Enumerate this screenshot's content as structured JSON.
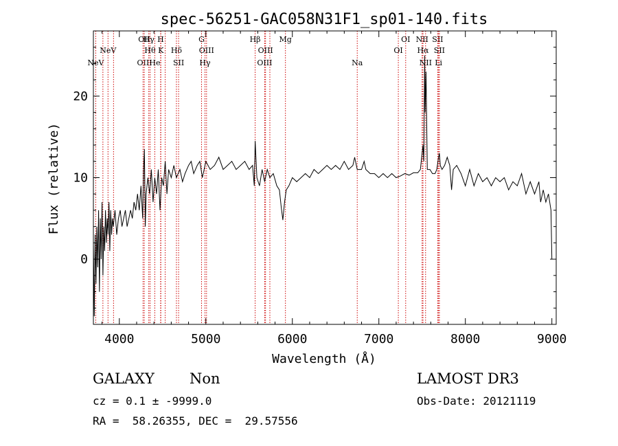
{
  "colors": {
    "axis": "#000000",
    "spectrum": "#000000",
    "line_marker": "#cc0000",
    "background": "#ffffff"
  },
  "chart_data": {
    "type": "line",
    "title": "spec-56251-GAC058N31F1_sp01-140.fits",
    "xlabel": "Wavelength (Å)",
    "ylabel": "Flux (relative)",
    "xlim": [
      3700,
      9050
    ],
    "ylim": [
      -8,
      28
    ],
    "x_ticks": [
      4000,
      5000,
      6000,
      7000,
      8000,
      9000
    ],
    "y_ticks": [
      0,
      10,
      20
    ],
    "x_minor_step": 200,
    "y_minor_step": 2,
    "series": [
      {
        "name": "flux",
        "points": [
          [
            3700,
            2
          ],
          [
            3710,
            -7
          ],
          [
            3720,
            3
          ],
          [
            3730,
            -3
          ],
          [
            3740,
            4
          ],
          [
            3750,
            -1
          ],
          [
            3760,
            6
          ],
          [
            3770,
            -4
          ],
          [
            3780,
            5
          ],
          [
            3790,
            0
          ],
          [
            3800,
            7
          ],
          [
            3810,
            -2
          ],
          [
            3820,
            4
          ],
          [
            3830,
            1
          ],
          [
            3840,
            6
          ],
          [
            3850,
            2
          ],
          [
            3860,
            5
          ],
          [
            3870,
            3
          ],
          [
            3880,
            7
          ],
          [
            3890,
            1
          ],
          [
            3900,
            6
          ],
          [
            3910,
            3
          ],
          [
            3920,
            5
          ],
          [
            3930,
            4
          ],
          [
            3950,
            6
          ],
          [
            3970,
            3
          ],
          [
            3990,
            5
          ],
          [
            4010,
            6
          ],
          [
            4030,
            4
          ],
          [
            4050,
            5
          ],
          [
            4070,
            6
          ],
          [
            4090,
            4
          ],
          [
            4110,
            5
          ],
          [
            4130,
            6
          ],
          [
            4150,
            5
          ],
          [
            4170,
            7
          ],
          [
            4190,
            6
          ],
          [
            4210,
            8
          ],
          [
            4230,
            6
          ],
          [
            4250,
            9
          ],
          [
            4270,
            5
          ],
          [
            4280,
            11
          ],
          [
            4290,
            13.5
          ],
          [
            4300,
            4
          ],
          [
            4310,
            8
          ],
          [
            4330,
            10
          ],
          [
            4350,
            8
          ],
          [
            4370,
            11
          ],
          [
            4390,
            7
          ],
          [
            4410,
            10
          ],
          [
            4430,
            8
          ],
          [
            4450,
            11
          ],
          [
            4470,
            6
          ],
          [
            4490,
            10
          ],
          [
            4510,
            9
          ],
          [
            4530,
            12
          ],
          [
            4550,
            8
          ],
          [
            4570,
            11
          ],
          [
            4600,
            10
          ],
          [
            4630,
            11.5
          ],
          [
            4660,
            10
          ],
          [
            4700,
            11
          ],
          [
            4730,
            9.5
          ],
          [
            4760,
            10.5
          ],
          [
            4800,
            11.5
          ],
          [
            4830,
            12
          ],
          [
            4860,
            10.5
          ],
          [
            4900,
            11.5
          ],
          [
            4930,
            12
          ],
          [
            4960,
            10
          ],
          [
            5000,
            12
          ],
          [
            5050,
            11
          ],
          [
            5100,
            11.5
          ],
          [
            5150,
            12.5
          ],
          [
            5200,
            11
          ],
          [
            5250,
            11.5
          ],
          [
            5300,
            12
          ],
          [
            5350,
            11
          ],
          [
            5400,
            11.5
          ],
          [
            5450,
            12
          ],
          [
            5500,
            11
          ],
          [
            5540,
            11.5
          ],
          [
            5560,
            9
          ],
          [
            5570,
            14.5
          ],
          [
            5590,
            10
          ],
          [
            5620,
            9
          ],
          [
            5650,
            11
          ],
          [
            5680,
            9.5
          ],
          [
            5710,
            11
          ],
          [
            5740,
            10
          ],
          [
            5780,
            10.5
          ],
          [
            5820,
            9
          ],
          [
            5850,
            8.5
          ],
          [
            5870,
            6.5
          ],
          [
            5890,
            4.8
          ],
          [
            5910,
            7
          ],
          [
            5930,
            8.5
          ],
          [
            5960,
            9
          ],
          [
            6000,
            10
          ],
          [
            6050,
            9.5
          ],
          [
            6100,
            10
          ],
          [
            6150,
            10.5
          ],
          [
            6200,
            10
          ],
          [
            6250,
            11
          ],
          [
            6300,
            10.5
          ],
          [
            6350,
            11
          ],
          [
            6400,
            11.5
          ],
          [
            6450,
            11
          ],
          [
            6500,
            11.5
          ],
          [
            6550,
            11
          ],
          [
            6600,
            12
          ],
          [
            6650,
            11
          ],
          [
            6700,
            11.5
          ],
          [
            6720,
            12.5
          ],
          [
            6750,
            11
          ],
          [
            6800,
            11
          ],
          [
            6830,
            12
          ],
          [
            6850,
            11
          ],
          [
            6900,
            10.5
          ],
          [
            6950,
            10.5
          ],
          [
            7000,
            10
          ],
          [
            7050,
            10.5
          ],
          [
            7100,
            10
          ],
          [
            7150,
            10.5
          ],
          [
            7200,
            10
          ],
          [
            7250,
            10.2
          ],
          [
            7300,
            10.5
          ],
          [
            7350,
            10.3
          ],
          [
            7400,
            10.6
          ],
          [
            7450,
            10.6
          ],
          [
            7480,
            11
          ],
          [
            7500,
            13
          ],
          [
            7510,
            14
          ],
          [
            7520,
            12
          ],
          [
            7530,
            25
          ],
          [
            7535,
            18
          ],
          [
            7545,
            23
          ],
          [
            7560,
            11
          ],
          [
            7590,
            11
          ],
          [
            7620,
            10.5
          ],
          [
            7650,
            10.5
          ],
          [
            7670,
            11
          ],
          [
            7690,
            12.5
          ],
          [
            7700,
            13
          ],
          [
            7710,
            11.5
          ],
          [
            7730,
            11
          ],
          [
            7760,
            11.5
          ],
          [
            7790,
            12.5
          ],
          [
            7820,
            11.5
          ],
          [
            7840,
            8.5
          ],
          [
            7860,
            11
          ],
          [
            7900,
            11.5
          ],
          [
            7950,
            10.5
          ],
          [
            8000,
            9
          ],
          [
            8050,
            11
          ],
          [
            8100,
            9
          ],
          [
            8150,
            10.5
          ],
          [
            8200,
            9.5
          ],
          [
            8250,
            10
          ],
          [
            8300,
            9
          ],
          [
            8350,
            10
          ],
          [
            8400,
            9.5
          ],
          [
            8450,
            10
          ],
          [
            8500,
            8.5
          ],
          [
            8550,
            9.5
          ],
          [
            8600,
            9
          ],
          [
            8650,
            10.5
          ],
          [
            8700,
            8
          ],
          [
            8750,
            9.5
          ],
          [
            8800,
            8
          ],
          [
            8850,
            9.5
          ],
          [
            8870,
            7
          ],
          [
            8900,
            8.5
          ],
          [
            8930,
            7
          ],
          [
            8960,
            8
          ],
          [
            8990,
            6
          ],
          [
            9000,
            0
          ]
        ]
      }
    ],
    "line_markers": [
      {
        "x": 3727,
        "labels": [
          "NeV"
        ],
        "row": 2
      },
      {
        "x": 3810,
        "labels": [],
        "row": 0
      },
      {
        "x": 3869,
        "labels": [
          "NeV"
        ],
        "row": 1
      },
      {
        "x": 3933,
        "labels": [],
        "row": 0
      },
      {
        "x": 4274,
        "labels": [
          "OII"
        ],
        "row": 2
      },
      {
        "x": 4288,
        "labels": [
          "OII"
        ],
        "row": 0
      },
      {
        "x": 4340,
        "labels": [
          "Hγ"
        ],
        "row": 0
      },
      {
        "x": 4355,
        "labels": [
          "Hθ"
        ],
        "row": 1
      },
      {
        "x": 4410,
        "labels": [
          "He"
        ],
        "row": 2
      },
      {
        "x": 4477,
        "labels": [
          "H"
        ],
        "row": 0
      },
      {
        "x": 4480,
        "labels": [
          "K"
        ],
        "row": 1
      },
      {
        "x": 4530,
        "labels": [],
        "row": 0
      },
      {
        "x": 4660,
        "labels": [
          "Hδ"
        ],
        "row": 1
      },
      {
        "x": 4685,
        "labels": [
          "SII"
        ],
        "row": 2
      },
      {
        "x": 4950,
        "labels": [
          "G"
        ],
        "row": 0
      },
      {
        "x": 5008,
        "labels": [
          "OIII"
        ],
        "row": 1
      },
      {
        "x": 4990,
        "labels": [
          "Hγ"
        ],
        "row": 2
      },
      {
        "x": 5570,
        "labels": [
          "Hβ"
        ],
        "row": 0
      },
      {
        "x": 5690,
        "labels": [
          "OIII"
        ],
        "row": 1
      },
      {
        "x": 5680,
        "labels": [
          "OIII"
        ],
        "row": 2
      },
      {
        "x": 5740,
        "labels": [],
        "row": 0
      },
      {
        "x": 5920,
        "labels": [
          "Mg"
        ],
        "row": 0
      },
      {
        "x": 6750,
        "labels": [
          "Na"
        ],
        "row": 2
      },
      {
        "x": 7225,
        "labels": [
          "OI"
        ],
        "row": 1
      },
      {
        "x": 7310,
        "labels": [
          "OI"
        ],
        "row": 0
      },
      {
        "x": 7500,
        "labels": [
          "NII"
        ],
        "row": 0
      },
      {
        "x": 7510,
        "labels": [
          "Hα"
        ],
        "row": 1
      },
      {
        "x": 7540,
        "labels": [
          "NII"
        ],
        "row": 2
      },
      {
        "x": 7680,
        "labels": [
          "SII"
        ],
        "row": 0
      },
      {
        "x": 7700,
        "labels": [
          "SII"
        ],
        "row": 1
      },
      {
        "x": 7690,
        "labels": [
          "Li"
        ],
        "row": 2
      }
    ]
  },
  "info": {
    "object_class": "GALAXY",
    "subclass": "Non",
    "survey": "LAMOST DR3",
    "redshift_line": "cz = 0.1 ± -9999.0",
    "obs_date_line": "Obs-Date: 20121119",
    "coords_line": "RA =  58.26355, DEC =  29.57556"
  }
}
